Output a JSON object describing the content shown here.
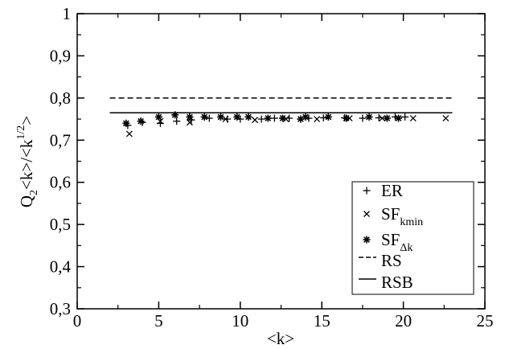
{
  "chart_data": {
    "type": "scatter",
    "xlabel": "<k>",
    "ylabel": {
      "prefix": "Q",
      "prefix_subscript": "2",
      "middle": "<k>/<k",
      "superscript": "1/2",
      "suffix": ">"
    },
    "xlim": [
      0,
      25
    ],
    "ylim": [
      0.3,
      1.0
    ],
    "x_ticks": [
      0,
      5,
      10,
      15,
      20,
      25
    ],
    "x_tick_labels": [
      "0",
      "5",
      "10",
      "15",
      "20",
      "25"
    ],
    "y_ticks": [
      0.3,
      0.4,
      0.5,
      0.6,
      0.7,
      0.8,
      0.9,
      1.0
    ],
    "y_tick_labels": [
      "0,3",
      "0,4",
      "0,5",
      "0,6",
      "0,7",
      "0,8",
      "0,9",
      "1"
    ],
    "grid": false,
    "legend_position": "bottom-right",
    "series": [
      {
        "name": "ER",
        "legend_text": "ER",
        "marker": "plus",
        "points": [
          [
            3.1,
            0.735
          ],
          [
            4.0,
            0.742
          ],
          [
            5.1,
            0.74
          ],
          [
            6.1,
            0.745
          ],
          [
            7.0,
            0.748
          ],
          [
            8.1,
            0.752
          ],
          [
            9.2,
            0.75
          ],
          [
            10.0,
            0.75
          ],
          [
            11.3,
            0.75
          ],
          [
            12.1,
            0.752
          ],
          [
            13.0,
            0.752
          ],
          [
            14.2,
            0.752
          ],
          [
            15.1,
            0.753
          ],
          [
            16.4,
            0.753
          ],
          [
            17.5,
            0.752
          ],
          [
            18.5,
            0.753
          ],
          [
            19.5,
            0.755
          ],
          [
            20.1,
            0.755
          ]
        ]
      },
      {
        "name": "SF_kmin",
        "legend_text": "SF",
        "legend_subscript": "kmin",
        "marker": "cross",
        "points": [
          [
            3.2,
            0.715
          ],
          [
            5.1,
            0.745
          ],
          [
            6.9,
            0.742
          ],
          [
            9.1,
            0.75
          ],
          [
            10.9,
            0.748
          ],
          [
            12.8,
            0.75
          ],
          [
            14.7,
            0.75
          ],
          [
            16.7,
            0.752
          ],
          [
            18.7,
            0.752
          ],
          [
            20.6,
            0.752
          ],
          [
            22.6,
            0.752
          ]
        ]
      },
      {
        "name": "SF_Δk",
        "legend_text": "SF",
        "legend_subscript": "Δk",
        "marker": "star",
        "points": [
          [
            3.0,
            0.74
          ],
          [
            3.9,
            0.745
          ],
          [
            5.0,
            0.755
          ],
          [
            6.0,
            0.76
          ],
          [
            6.9,
            0.755
          ],
          [
            7.8,
            0.755
          ],
          [
            8.8,
            0.755
          ],
          [
            9.8,
            0.755
          ],
          [
            10.5,
            0.755
          ],
          [
            11.7,
            0.752
          ],
          [
            12.6,
            0.752
          ],
          [
            13.7,
            0.75
          ],
          [
            14.0,
            0.755
          ],
          [
            15.4,
            0.755
          ],
          [
            16.5,
            0.752
          ],
          [
            17.9,
            0.755
          ],
          [
            19.0,
            0.752
          ],
          [
            19.7,
            0.752
          ]
        ]
      }
    ],
    "lines": [
      {
        "name": "RS",
        "legend_text": "RS",
        "style": "dashed",
        "y": 0.8,
        "x_range": [
          2,
          23
        ]
      },
      {
        "name": "RSB",
        "legend_text": "RSB",
        "style": "solid",
        "y": 0.765,
        "x_range": [
          2,
          23
        ]
      }
    ]
  }
}
